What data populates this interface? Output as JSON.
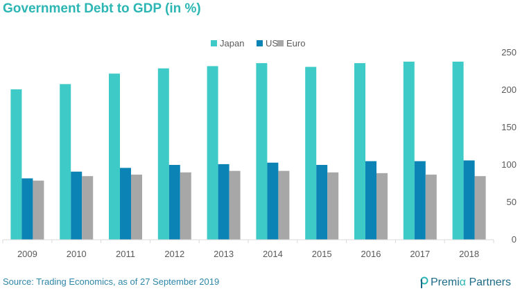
{
  "title": "Government Debt to GDP (in %)",
  "source": "Source: Trading Economics, as of 27 September 2019",
  "logo": {
    "part1": "Premi",
    "part2": "α",
    "part3": " Partners"
  },
  "colors": {
    "title": "#2bb6b3",
    "japan": "#3ecbc8",
    "us": "#0b84b5",
    "euro": "#a7a7a7",
    "axis_text": "#595959",
    "source": "#2e86a8",
    "logo": "#1d6a86"
  },
  "chart_data": {
    "type": "bar",
    "title": "Government Debt to GDP (in %)",
    "categories": [
      "2009",
      "2010",
      "2011",
      "2012",
      "2013",
      "2014",
      "2015",
      "2016",
      "2017",
      "2018"
    ],
    "series": [
      {
        "name": "Japan",
        "values": [
          201,
          208,
          222,
          229,
          232,
          236,
          231,
          236,
          238,
          238
        ]
      },
      {
        "name": "US",
        "values": [
          82,
          91,
          96,
          100,
          101,
          103,
          100,
          105,
          105,
          106
        ]
      },
      {
        "name": "Euro",
        "values": [
          79,
          85,
          87,
          90,
          92,
          92,
          90,
          89,
          87,
          85
        ]
      }
    ],
    "ylim": [
      0,
      250
    ],
    "yticks": [
      0,
      50,
      100,
      150,
      200,
      250
    ],
    "yaxis_position": "right",
    "legend_position": "top",
    "grid": false
  }
}
